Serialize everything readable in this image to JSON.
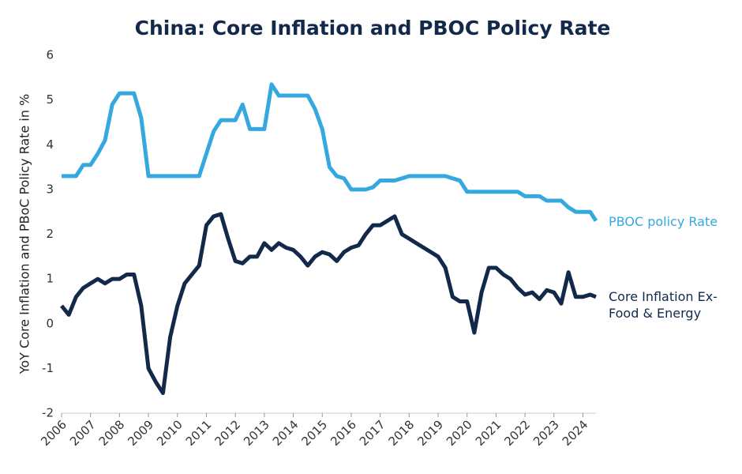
{
  "chart_data": {
    "type": "line",
    "title": "China: Core Inflation and PBOC Policy Rate",
    "y_label": "YoY Core Inflation and PBoC Policy Rate in %",
    "x": [
      2006,
      2006.25,
      2006.5,
      2006.75,
      2007,
      2007.25,
      2007.5,
      2007.75,
      2008,
      2008.25,
      2008.5,
      2008.75,
      2009,
      2009.25,
      2009.5,
      2009.75,
      2010,
      2010.25,
      2010.5,
      2010.75,
      2011,
      2011.25,
      2011.5,
      2011.75,
      2012,
      2012.25,
      2012.5,
      2012.75,
      2013,
      2013.25,
      2013.5,
      2013.75,
      2014,
      2014.25,
      2014.5,
      2014.75,
      2015,
      2015.25,
      2015.5,
      2015.75,
      2016,
      2016.25,
      2016.5,
      2016.75,
      2017,
      2017.25,
      2017.5,
      2017.75,
      2018,
      2018.25,
      2018.5,
      2018.75,
      2019,
      2019.25,
      2019.5,
      2019.75,
      2020,
      2020.25,
      2020.5,
      2020.75,
      2021,
      2021.25,
      2021.5,
      2021.75,
      2022,
      2022.25,
      2022.5,
      2022.75,
      2023,
      2023.25,
      2023.5,
      2023.75,
      2024,
      2024.25,
      2024.45
    ],
    "series": [
      {
        "name": "PBOC policy Rate",
        "color": "#35a8e0",
        "values": [
          3.3,
          3.3,
          3.3,
          3.55,
          3.55,
          3.8,
          4.1,
          4.9,
          5.15,
          5.15,
          5.15,
          4.6,
          3.3,
          3.3,
          3.3,
          3.3,
          3.3,
          3.3,
          3.3,
          3.3,
          3.8,
          4.3,
          4.55,
          4.55,
          4.55,
          4.9,
          4.35,
          4.35,
          4.35,
          5.35,
          5.1,
          5.1,
          5.1,
          5.1,
          5.1,
          4.8,
          4.35,
          3.5,
          3.3,
          3.25,
          3.0,
          3.0,
          3.0,
          3.05,
          3.2,
          3.2,
          3.2,
          3.25,
          3.3,
          3.3,
          3.3,
          3.3,
          3.3,
          3.3,
          3.25,
          3.2,
          2.95,
          2.95,
          2.95,
          2.95,
          2.95,
          2.95,
          2.95,
          2.95,
          2.85,
          2.85,
          2.85,
          2.75,
          2.75,
          2.75,
          2.6,
          2.5,
          2.5,
          2.5,
          2.3
        ]
      },
      {
        "name": "Core Inflation Ex-Food & Energy",
        "color": "#13294b",
        "values": [
          0.4,
          0.2,
          0.6,
          0.8,
          0.9,
          1.0,
          0.9,
          1.0,
          1.0,
          1.1,
          1.1,
          0.4,
          -1.0,
          -1.3,
          -1.55,
          -0.3,
          0.4,
          0.9,
          1.1,
          1.3,
          2.2,
          2.4,
          2.45,
          1.9,
          1.4,
          1.35,
          1.5,
          1.5,
          1.8,
          1.65,
          1.8,
          1.7,
          1.65,
          1.5,
          1.3,
          1.5,
          1.6,
          1.55,
          1.4,
          1.6,
          1.7,
          1.75,
          2.0,
          2.2,
          2.2,
          2.3,
          2.4,
          2.0,
          1.9,
          1.8,
          1.7,
          1.6,
          1.5,
          1.25,
          0.6,
          0.5,
          0.5,
          -0.2,
          0.7,
          1.25,
          1.25,
          1.1,
          1.0,
          0.8,
          0.65,
          0.7,
          0.55,
          0.75,
          0.7,
          0.45,
          1.15,
          0.6,
          0.6,
          0.65,
          0.6
        ]
      }
    ],
    "xlim": [
      2006,
      2024.45
    ],
    "xticks": [
      2006,
      2007,
      2008,
      2009,
      2010,
      2011,
      2012,
      2013,
      2014,
      2015,
      2016,
      2017,
      2018,
      2019,
      2020,
      2021,
      2022,
      2023,
      2024
    ],
    "ylim": [
      -2,
      6
    ],
    "yticks": [
      -2,
      -1,
      0,
      1,
      2,
      3,
      4,
      5,
      6
    ],
    "grid": false
  }
}
